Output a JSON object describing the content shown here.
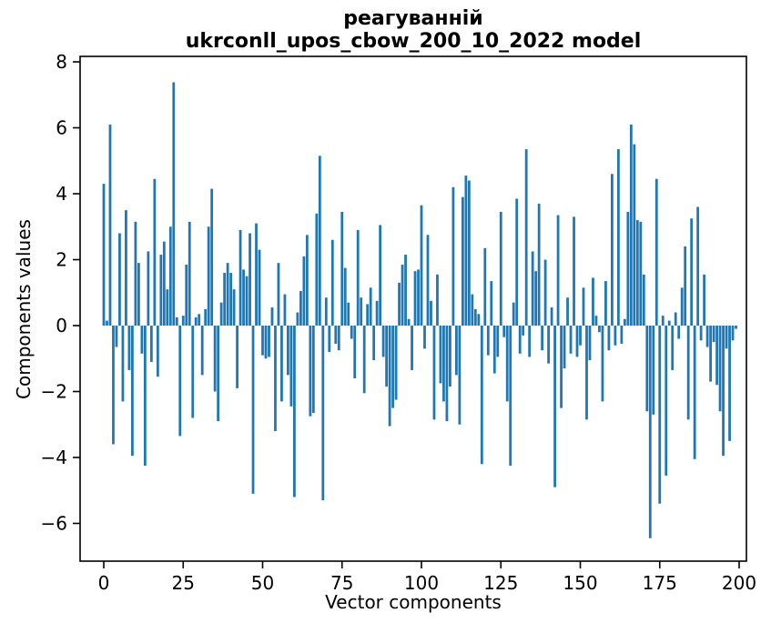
{
  "figure": {
    "title_line1": "реагуванній",
    "title_line2": "ukrconll_upos_cbow_200_10_2022 model",
    "xlabel": "Vector components",
    "ylabel": "Components values",
    "bar_color": "#1f77b4",
    "axis_color": "#000000",
    "background_color": "#ffffff"
  },
  "chart_data": {
    "type": "bar",
    "title": "реагуванній ukrconll_upos_cbow_200_10_2022 model",
    "xlabel": "Vector components",
    "ylabel": "Components values",
    "n_components": 200,
    "bar_width": 0.8,
    "grid": false,
    "legend": null,
    "x_ticks": [
      0,
      25,
      50,
      75,
      100,
      125,
      150,
      175,
      200
    ],
    "y_ticks": [
      8,
      6,
      4,
      2,
      0,
      -2,
      -4,
      -6
    ],
    "xlim": [
      -7.45,
      202.29
    ],
    "ylim": [
      -7.145,
      8.166
    ],
    "values": [
      4.3,
      0.15,
      6.1,
      -3.6,
      -0.65,
      2.8,
      -2.3,
      3.5,
      -1.35,
      -3.95,
      3.15,
      1.9,
      -0.85,
      -4.25,
      2.25,
      -1.1,
      4.45,
      -1.55,
      2.15,
      2.55,
      1.1,
      3.0,
      7.38,
      0.25,
      -3.35,
      0.3,
      1.85,
      3.15,
      -2.8,
      0.25,
      0.35,
      -1.5,
      0.5,
      3.0,
      4.15,
      -2.0,
      -2.9,
      0.7,
      1.6,
      1.9,
      1.6,
      1.1,
      -1.9,
      2.9,
      1.7,
      1.5,
      2.8,
      -5.1,
      3.1,
      2.3,
      -0.9,
      -1.0,
      -0.95,
      0.55,
      -3.2,
      1.9,
      -2.3,
      0.95,
      -1.5,
      -2.45,
      -5.2,
      0.4,
      1.05,
      2.1,
      2.75,
      -2.75,
      -2.65,
      3.4,
      5.15,
      -5.3,
      0.85,
      -0.8,
      2.6,
      -0.55,
      -0.75,
      3.45,
      1.75,
      0.7,
      -0.4,
      -1.6,
      2.9,
      0.85,
      -2.05,
      0.65,
      1.15,
      -1.05,
      0.75,
      3.05,
      -0.95,
      -1.85,
      -3.05,
      -2.5,
      -2.25,
      1.3,
      1.85,
      2.15,
      0.2,
      -1.35,
      1.65,
      1.7,
      3.65,
      -0.7,
      2.75,
      0.75,
      -2.85,
      1.55,
      -1.75,
      -2.3,
      -2.9,
      -1.85,
      4.2,
      -1.5,
      -3.0,
      3.9,
      4.55,
      4.4,
      0.95,
      0.5,
      0.35,
      -4.2,
      2.35,
      -0.9,
      1.35,
      -1.45,
      -0.95,
      3.45,
      -0.35,
      -2.3,
      -4.25,
      0.7,
      3.85,
      -0.85,
      -0.3,
      5.35,
      -0.95,
      2.25,
      1.65,
      3.7,
      -0.75,
      2.0,
      -1.15,
      0.55,
      -4.9,
      3.35,
      -2.5,
      -1.3,
      0.85,
      -0.85,
      3.3,
      -0.95,
      -0.6,
      1.15,
      -2.85,
      -1.05,
      1.45,
      0.3,
      -0.2,
      -2.3,
      1.35,
      -0.75,
      4.6,
      -0.6,
      5.35,
      -0.55,
      0.2,
      3.45,
      6.1,
      5.5,
      3.2,
      3.15,
      1.55,
      -2.6,
      -6.45,
      -2.7,
      4.45,
      -5.4,
      0.3,
      -4.55,
      0.15,
      -1.35,
      0.4,
      -0.4,
      1.15,
      2.4,
      -2.85,
      3.25,
      -4.05,
      3.6,
      -0.45,
      1.55,
      -0.65,
      -1.7,
      -0.5,
      -1.8,
      -2.6,
      -3.95,
      -0.7,
      -3.5,
      -0.45,
      -0.1
    ]
  }
}
